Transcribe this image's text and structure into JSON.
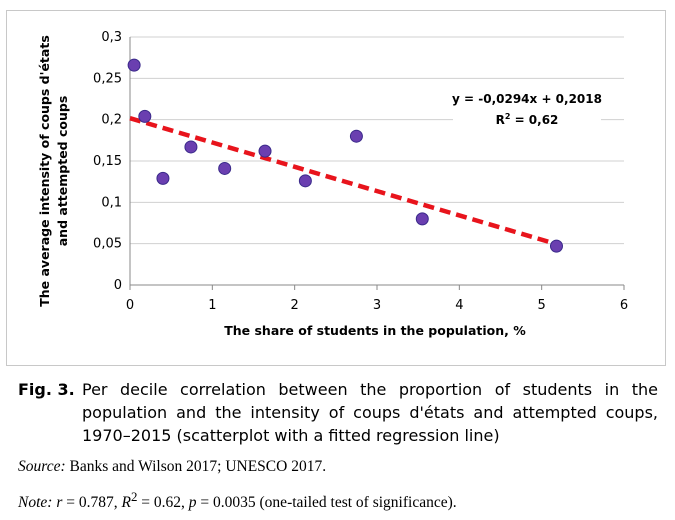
{
  "chart_data": {
    "type": "scatter",
    "title": "",
    "xlabel": "The share of students in the population, %",
    "ylabel": "The average intensity of coups d'états and attempted coups",
    "xlim": [
      0,
      6
    ],
    "ylim": [
      0,
      0.3
    ],
    "x_ticks": [
      "0",
      "1",
      "2",
      "3",
      "4",
      "5",
      "6"
    ],
    "y_ticks": [
      "0",
      "0,05",
      "0,1",
      "0,15",
      "0,2",
      "0,25",
      "0,3"
    ],
    "grid": "horizontal",
    "points": [
      {
        "x": 0.05,
        "y": 0.266
      },
      {
        "x": 0.18,
        "y": 0.204
      },
      {
        "x": 0.4,
        "y": 0.129
      },
      {
        "x": 0.74,
        "y": 0.167
      },
      {
        "x": 1.15,
        "y": 0.141
      },
      {
        "x": 1.64,
        "y": 0.162
      },
      {
        "x": 2.13,
        "y": 0.126
      },
      {
        "x": 2.75,
        "y": 0.18
      },
      {
        "x": 3.55,
        "y": 0.08
      },
      {
        "x": 5.18,
        "y": 0.047
      }
    ],
    "trendline": {
      "slope": -0.0294,
      "intercept": 0.2018,
      "x_start": 0,
      "x_end": 5.18
    },
    "equation_line1": "y = -0,0294x + 0,2018",
    "equation_line2": "R² = 0,62",
    "colors": {
      "point_fill": "#6a3fb0",
      "point_stroke": "#3a2a8a",
      "trendline": "#e8141c",
      "gridline": "#d0d0d0"
    }
  },
  "caption": {
    "label": "Fig. 3.",
    "text": "Per decile correlation between the proportion of students in the population and the intensity of coups d'états and attempted coups, 1970–2015 (scatterplot with a fitted regression line)"
  },
  "source": {
    "prefix": "Source:",
    "text": " Banks and Wilson 2017; UNESCO 2017."
  },
  "note": {
    "prefix": "Note:",
    "r_sym": "r",
    "r_text": " = 0.787, ",
    "r2_sym": "R",
    "r2_sup": "2",
    "r2_text": " = 0.62, ",
    "p_sym": "p",
    "p_text": " = 0.0035 (one-tailed test of significance)."
  }
}
